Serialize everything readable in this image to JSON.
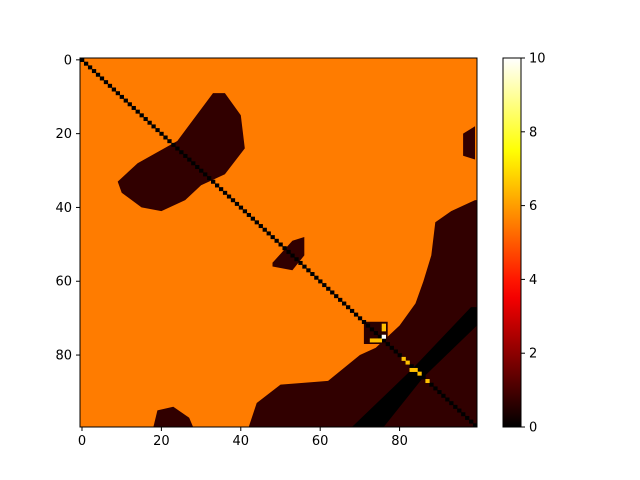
{
  "chart_data": {
    "type": "heatmap",
    "title": "",
    "xlabel": "",
    "ylabel": "",
    "shape": [
      100,
      100
    ],
    "xlim": [
      -0.5,
      99.5
    ],
    "ylim": [
      99.5,
      -0.5
    ],
    "x_ticks": [
      0,
      20,
      40,
      60,
      80
    ],
    "y_ticks": [
      0,
      20,
      40,
      60,
      80
    ],
    "colormap": "hot",
    "colorbar": {
      "vmin": 0,
      "vmax": 10,
      "ticks": [
        0,
        2,
        4,
        6,
        8,
        10
      ]
    },
    "background_value": 5.5,
    "diagonal_value": 0,
    "regions": [
      {
        "name": "upper-left blob",
        "value": 0.7,
        "polygon": [
          [
            9,
            33
          ],
          [
            14,
            28
          ],
          [
            24,
            22
          ],
          [
            33,
            9
          ],
          [
            36,
            9
          ],
          [
            40,
            15
          ],
          [
            41,
            24
          ],
          [
            36,
            31
          ],
          [
            30,
            34
          ],
          [
            26,
            38
          ],
          [
            20,
            41
          ],
          [
            15,
            40
          ],
          [
            10,
            36
          ]
        ]
      },
      {
        "name": "upper-right edge blob",
        "value": 0.7,
        "polygon": [
          [
            96,
            20
          ],
          [
            99,
            18
          ],
          [
            99,
            27
          ],
          [
            96,
            26
          ]
        ]
      },
      {
        "name": "middle small blob",
        "value": 0.7,
        "polygon": [
          [
            48,
            55
          ],
          [
            53,
            49
          ],
          [
            56,
            48
          ],
          [
            56,
            53
          ],
          [
            53,
            57
          ],
          [
            48,
            56
          ]
        ]
      },
      {
        "name": "lower-right band",
        "value": 0.7,
        "polygon": [
          [
            99,
            38
          ],
          [
            93,
            41
          ],
          [
            89,
            44
          ],
          [
            88,
            53
          ],
          [
            86,
            60
          ],
          [
            84,
            66
          ],
          [
            80,
            72
          ],
          [
            74,
            78
          ],
          [
            70,
            80
          ],
          [
            62,
            87
          ],
          [
            50,
            88
          ],
          [
            44,
            93
          ],
          [
            42,
            99.5
          ],
          [
            99.5,
            99.5
          ],
          [
            99.5,
            38
          ]
        ]
      },
      {
        "name": "dark square",
        "value": 0.6,
        "polygon": [
          [
            71,
            71
          ],
          [
            77,
            71
          ],
          [
            77,
            77
          ],
          [
            71,
            77
          ]
        ]
      },
      {
        "name": "bottom-left bump",
        "value": 0.7,
        "polygon": [
          [
            18,
            99.5
          ],
          [
            19,
            95
          ],
          [
            23,
            94
          ],
          [
            27,
            97
          ],
          [
            28,
            99.5
          ]
        ]
      },
      {
        "name": "black stripe",
        "value": 0,
        "polygon": [
          [
            98,
            67
          ],
          [
            99.5,
            67
          ],
          [
            99.5,
            72
          ],
          [
            86,
            86
          ],
          [
            76,
            99.5
          ],
          [
            68,
            99.5
          ],
          [
            83,
            84
          ]
        ]
      }
    ],
    "hot_pixels": [
      {
        "x": 76,
        "y": 72,
        "value": 6.5
      },
      {
        "x": 76,
        "y": 73,
        "value": 6.5
      },
      {
        "x": 73,
        "y": 76,
        "value": 6.5
      },
      {
        "x": 74,
        "y": 76,
        "value": 6.5
      },
      {
        "x": 75,
        "y": 76,
        "value": 6.5
      },
      {
        "x": 76,
        "y": 75,
        "value": 10
      },
      {
        "x": 81,
        "y": 81,
        "value": 6.5
      },
      {
        "x": 82,
        "y": 82,
        "value": 6.5
      },
      {
        "x": 83,
        "y": 84,
        "value": 6.5
      },
      {
        "x": 84,
        "y": 84,
        "value": 6.5
      },
      {
        "x": 85,
        "y": 85,
        "value": 6.5
      },
      {
        "x": 87,
        "y": 87,
        "value": 6.5
      }
    ]
  }
}
